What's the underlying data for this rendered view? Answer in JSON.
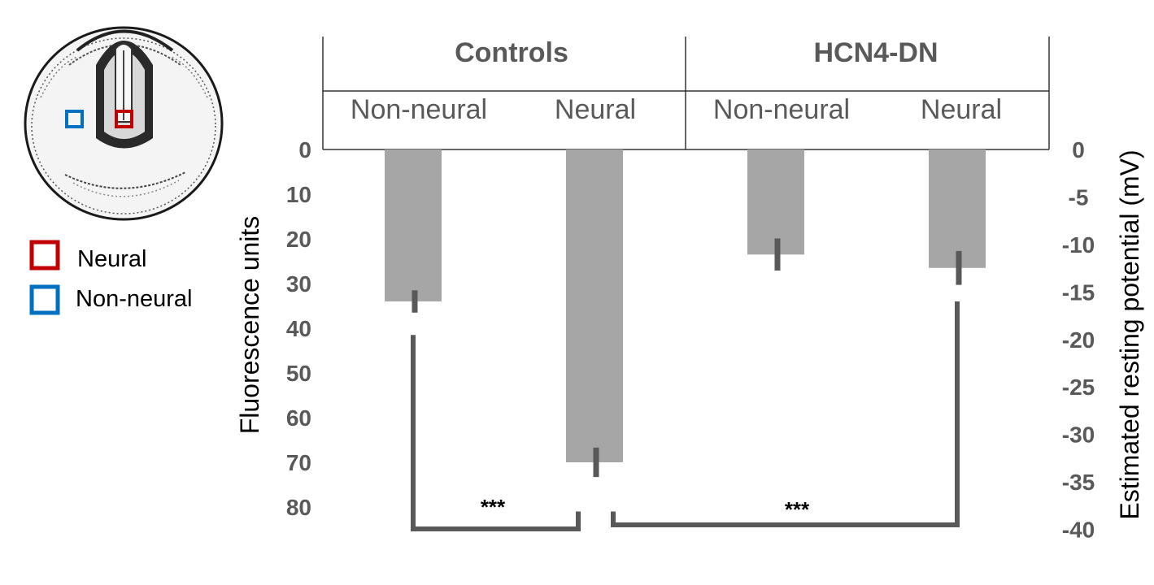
{
  "chart_data": {
    "type": "bar",
    "orientation": "inverted",
    "groups": [
      {
        "label": "Controls",
        "categories": [
          "Non-neural",
          "Neural"
        ]
      },
      {
        "label": "HCN4-DN",
        "categories": [
          "Non-neural",
          "Neural"
        ]
      }
    ],
    "categories": [
      "Non-neural",
      "Neural",
      "Non-neural",
      "Neural"
    ],
    "series": [
      {
        "values": [
          34,
          70,
          23.5,
          26.5
        ],
        "errors": [
          2.5,
          3.3,
          3.6,
          3.8
        ]
      }
    ],
    "ylabel": "Fluorescence units",
    "y2label": "Estimated resting potential (mV)",
    "ylim": [
      0,
      85
    ],
    "yticks": [
      0,
      10,
      20,
      30,
      40,
      50,
      60,
      70,
      80
    ],
    "y2lim": [
      0,
      -40
    ],
    "y2ticks": [
      0,
      -5,
      -10,
      -15,
      -20,
      -25,
      -30,
      -35,
      -40
    ],
    "significance": [
      {
        "between": [
          0,
          1
        ],
        "label": "***"
      },
      {
        "between": [
          1,
          3
        ],
        "label": "***"
      }
    ],
    "bar_color": "#a6a6a6",
    "error_color": "#595959",
    "grid": false
  },
  "legend": {
    "items": [
      {
        "label": "Neural",
        "color": "#c00000"
      },
      {
        "label": "Non-neural",
        "color": "#0070c0"
      }
    ]
  }
}
